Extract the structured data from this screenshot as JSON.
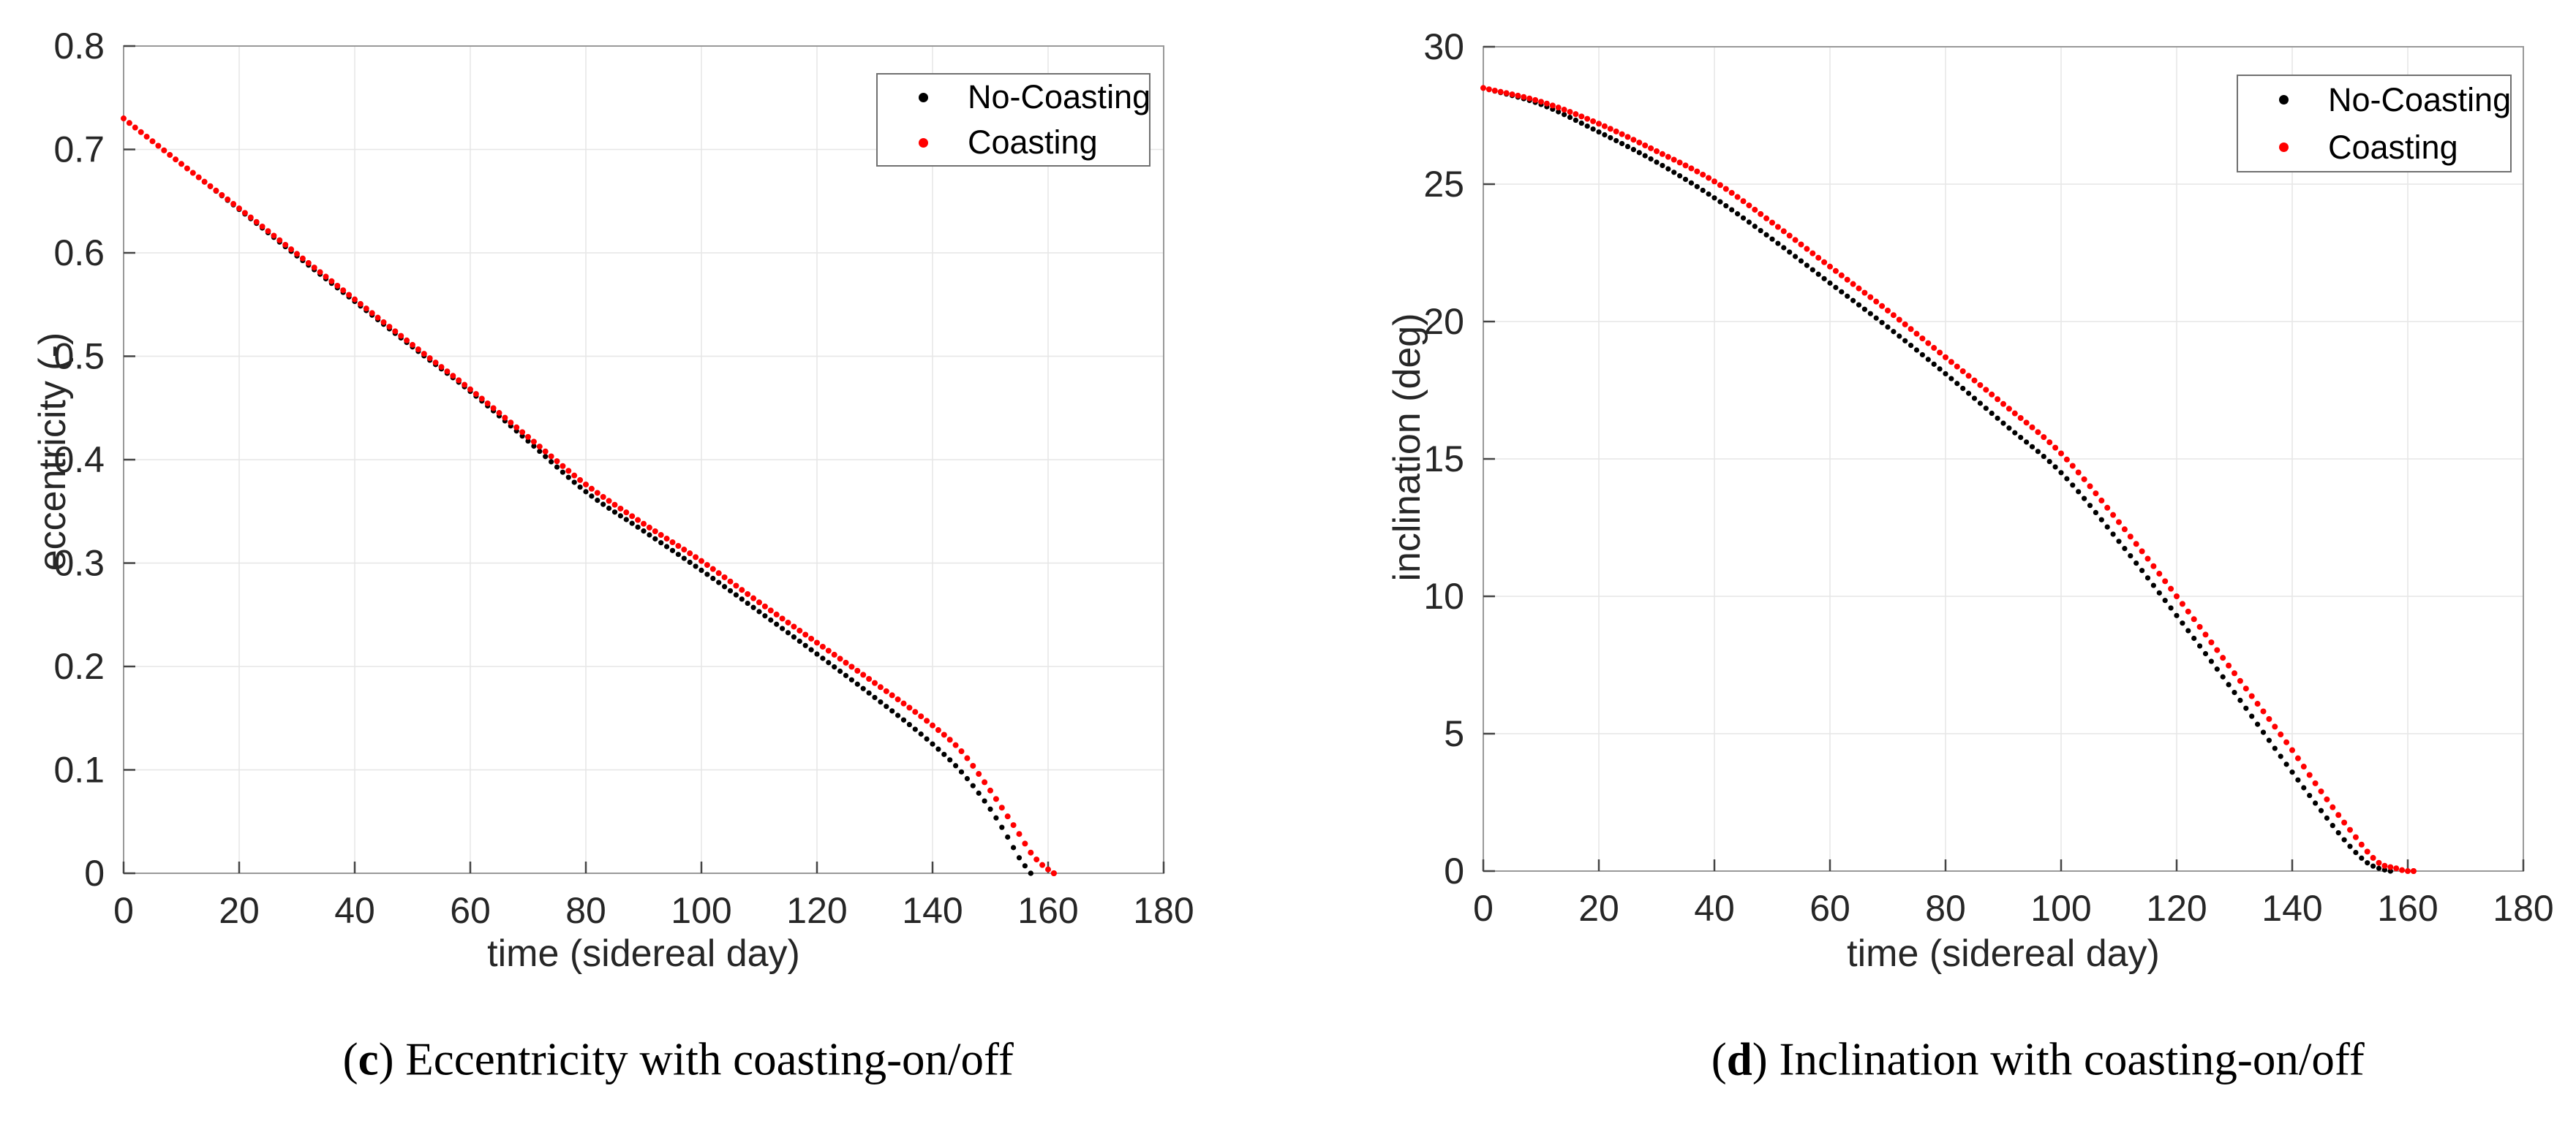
{
  "figure": {
    "background": "#ffffff",
    "text_color": "#262626",
    "grid_color": "#e6e6e6",
    "spine_color": "#999999",
    "tick_color": "#444444",
    "series_black": "#000000",
    "series_red": "#ff0000"
  },
  "chart_data": [
    {
      "id": "eccentricity",
      "type": "scatter",
      "title": "",
      "xlabel": "time (sidereal day)",
      "ylabel": "eccentricity (-)",
      "xlim": [
        0,
        180
      ],
      "ylim": [
        0,
        0.8
      ],
      "xticks": [
        0,
        20,
        40,
        60,
        80,
        100,
        120,
        140,
        160,
        180
      ],
      "yticks": [
        0,
        0.1,
        0.2,
        0.3,
        0.4,
        0.5,
        0.6,
        0.7,
        0.8
      ],
      "ytick_labels": [
        "0",
        "0.1",
        "0.2",
        "0.3",
        "0.4",
        "0.5",
        "0.6",
        "0.7",
        "0.8"
      ],
      "grid": true,
      "marker": "point",
      "sample_step_days": 1,
      "legend": {
        "position": "northeast",
        "entries": [
          {
            "label": "No-Coasting",
            "color": "#000000"
          },
          {
            "label": "Coasting",
            "color": "#ff0000"
          }
        ]
      },
      "series": [
        {
          "name": "No-Coasting",
          "color": "#000000",
          "x": [
            0,
            10,
            20,
            30,
            40,
            50,
            60,
            70,
            80,
            90,
            100,
            110,
            120,
            130,
            140,
            145,
            150,
            153,
            155,
            157
          ],
          "y": [
            0.73,
            0.686,
            0.642,
            0.597,
            0.553,
            0.509,
            0.466,
            0.418,
            0.369,
            0.331,
            0.293,
            0.253,
            0.212,
            0.17,
            0.125,
            0.098,
            0.062,
            0.035,
            0.015,
            0.0
          ]
        },
        {
          "name": "Coasting",
          "color": "#ff0000",
          "x": [
            0,
            10,
            20,
            30,
            40,
            50,
            60,
            70,
            80,
            90,
            100,
            110,
            120,
            130,
            140,
            145,
            150,
            153,
            155,
            157,
            159,
            161
          ],
          "y": [
            0.73,
            0.686,
            0.643,
            0.599,
            0.555,
            0.511,
            0.468,
            0.422,
            0.376,
            0.338,
            0.302,
            0.262,
            0.223,
            0.184,
            0.143,
            0.118,
            0.08,
            0.055,
            0.038,
            0.02,
            0.008,
            0.0
          ]
        }
      ],
      "caption": {
        "open": "(",
        "letter": "c",
        "close": ")",
        "rest": " Eccentricity with coasting-on/off"
      }
    },
    {
      "id": "inclination",
      "type": "scatter",
      "title": "",
      "xlabel": "time (sidereal day)",
      "ylabel": "inclination (deg)",
      "xlim": [
        0,
        180
      ],
      "ylim": [
        0,
        30
      ],
      "xticks": [
        0,
        20,
        40,
        60,
        80,
        100,
        120,
        140,
        160,
        180
      ],
      "yticks": [
        0,
        5,
        10,
        15,
        20,
        25,
        30
      ],
      "ytick_labels": [
        "0",
        "5",
        "10",
        "15",
        "20",
        "25",
        "30"
      ],
      "grid": true,
      "marker": "point",
      "sample_step_days": 1,
      "legend": {
        "position": "northeast",
        "entries": [
          {
            "label": "No-Coasting",
            "color": "#000000"
          },
          {
            "label": "Coasting",
            "color": "#ff0000"
          }
        ]
      },
      "series": [
        {
          "name": "No-Coasting",
          "color": "#000000",
          "x": [
            0,
            10,
            20,
            30,
            40,
            50,
            60,
            70,
            80,
            90,
            100,
            110,
            120,
            130,
            140,
            145,
            150,
            153,
            155,
            157
          ],
          "y": [
            28.5,
            27.9,
            26.9,
            25.8,
            24.5,
            23.0,
            21.4,
            19.8,
            18.1,
            16.3,
            14.5,
            12.0,
            9.3,
            6.5,
            3.6,
            2.2,
            0.9,
            0.3,
            0.1,
            0.0
          ]
        },
        {
          "name": "Coasting",
          "color": "#ff0000",
          "x": [
            0,
            10,
            20,
            30,
            40,
            50,
            60,
            70,
            80,
            90,
            100,
            110,
            120,
            130,
            140,
            145,
            150,
            155,
            158,
            160,
            161
          ],
          "y": [
            28.5,
            28.0,
            27.2,
            26.2,
            25.1,
            23.6,
            22.0,
            20.4,
            18.7,
            17.0,
            15.2,
            12.7,
            10.0,
            7.2,
            4.4,
            2.9,
            1.5,
            0.3,
            0.1,
            0.0,
            0.0
          ]
        }
      ],
      "caption": {
        "open": "(",
        "letter": "d",
        "close": ")",
        "rest": " Inclination with coasting-on/off"
      }
    }
  ]
}
